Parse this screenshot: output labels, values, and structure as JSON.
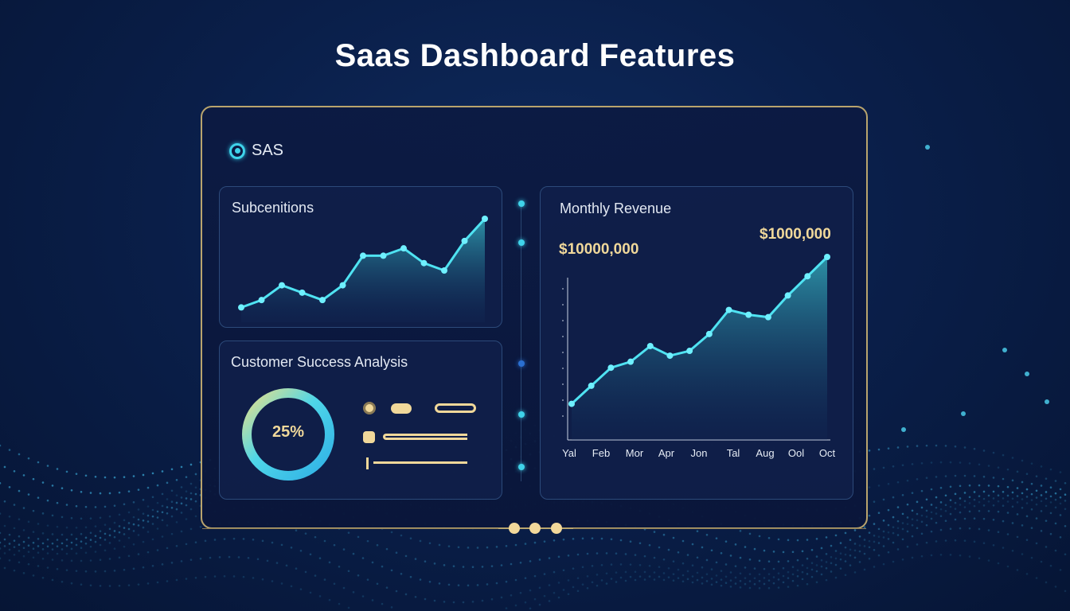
{
  "page": {
    "title": "Saas Dashboard Features"
  },
  "brand": {
    "label": "SAS",
    "icon": "target-icon"
  },
  "subscriptions": {
    "title": "Subcenitions",
    "trend": [
      2,
      3,
      5,
      4,
      3,
      5,
      9,
      9,
      10,
      8,
      7,
      11,
      14
    ]
  },
  "customer_success": {
    "title": "Customer Success Analysis",
    "donut_value_label": "25%"
  },
  "monthly_revenue": {
    "title": "Monthly Revenue",
    "value_left": "$10000,000",
    "value_right": "$1000,000",
    "months": [
      "Yal",
      "Feb",
      "Mor",
      "Apr",
      "Jon",
      "Tal",
      "Aug",
      "Ool",
      "Oct"
    ],
    "trend": [
      3,
      4.5,
      6,
      6.5,
      7.8,
      7,
      7.4,
      8.8,
      10.8,
      10.4,
      10.2,
      12,
      13.6,
      15.2
    ]
  },
  "colors": {
    "accent": "#3fd3ea",
    "gold": "#f0d89a",
    "frame": "#b9a46d"
  }
}
